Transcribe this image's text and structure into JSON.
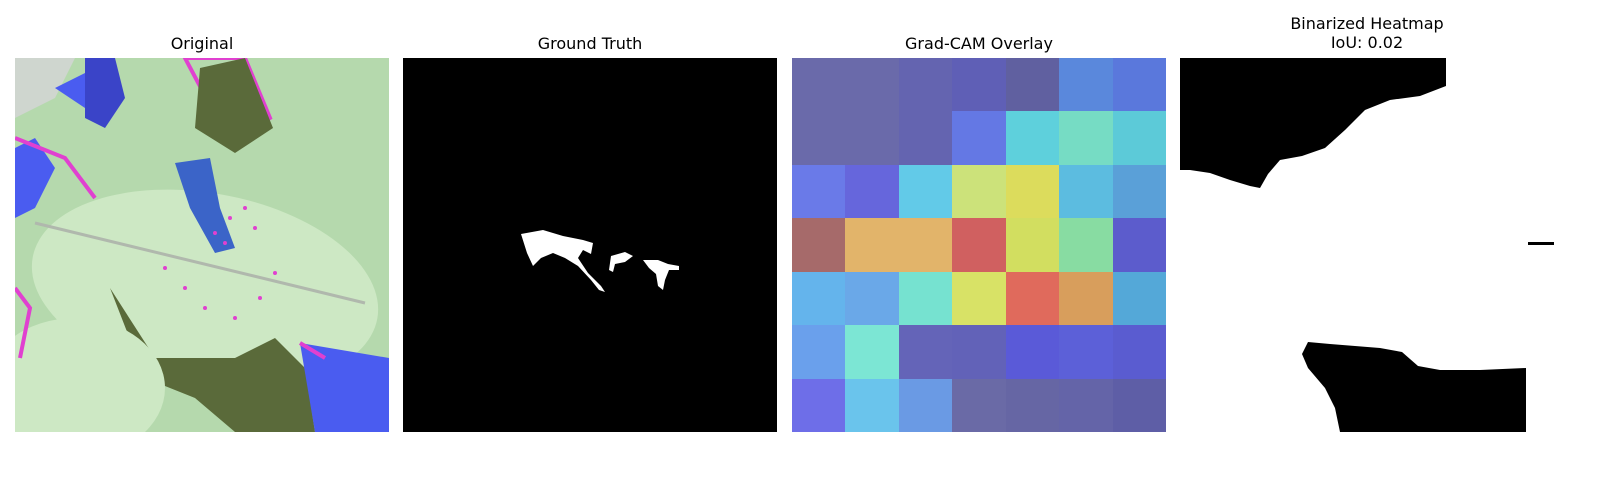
{
  "panels": [
    {
      "title": "Original"
    },
    {
      "title": "Ground Truth"
    },
    {
      "title": "Grad-CAM Overlay"
    },
    {
      "title": "Binarized Heatmap\nIoU: 0.02"
    }
  ],
  "gradcam_grid": [
    [
      "#6a6aaa",
      "#6a6aaa",
      "#6464b0",
      "#5f5fb6",
      "#6060a0",
      "#5a88dc",
      "#5a78dc"
    ],
    [
      "#6a6aaa",
      "#6a6aaa",
      "#6464b0",
      "#6478e4",
      "#5ed0dc",
      "#76dcc4",
      "#5ccad8"
    ],
    [
      "#6a7ae8",
      "#6666dc",
      "#62cae8",
      "#cce27a",
      "#dcdc5c",
      "#5cbce0",
      "#5aa0d8"
    ],
    [
      "#a66a6a",
      "#e2b46a",
      "#e2b46a",
      "#d06060",
      "#d2de60",
      "#88dca2",
      "#5c5ccc"
    ],
    [
      "#64b4ec",
      "#6aa8e8",
      "#76e2d0",
      "#d8e266",
      "#e06a5c",
      "#d89e5c",
      "#54a8d8"
    ],
    [
      "#6aa0ec",
      "#7ce6d4",
      "#6464b8",
      "#6262b8",
      "#5a5ad8",
      "#5c60d8",
      "#5a5cd0"
    ],
    [
      "#6e6ee8",
      "#6ac4ec",
      "#6a9ae4",
      "#6a6aa6",
      "#6666a4",
      "#6464a8",
      "#5e5ea6"
    ]
  ],
  "colors": {
    "leaf_light": "#cde8c4",
    "leaf_bg": "#b5d9ad",
    "dark_shadow": "#5a6a3a",
    "blue_patch": "#4a5cf0",
    "magenta_edge": "#e040d0",
    "mask_fg": "#ffffff",
    "mask_bg": "#000000"
  }
}
